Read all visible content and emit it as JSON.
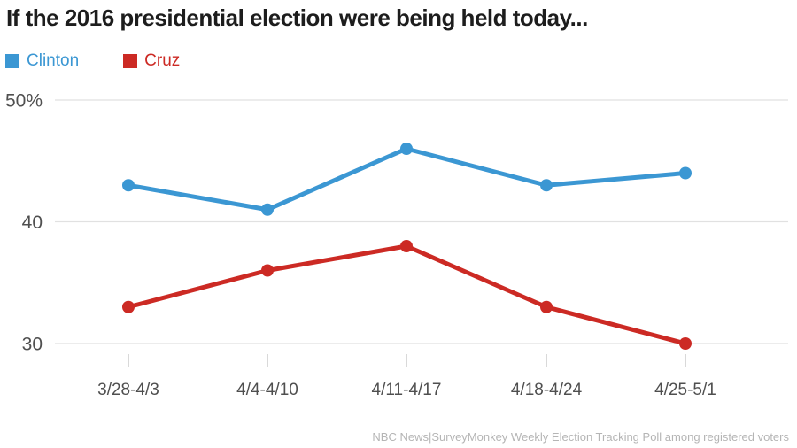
{
  "title": "If the 2016 presidential election were being held today...",
  "legend": {
    "items": [
      {
        "label": "Clinton",
        "color": "#3b97d3"
      },
      {
        "label": "Cruz",
        "color": "#cc2a24"
      }
    ]
  },
  "footer": {
    "source_note": "NBC News|SurveyMonkey Weekly Election Tracking Poll among registered voters"
  },
  "colors": {
    "clinton": "#3b97d3",
    "cruz": "#cc2a24",
    "gridline": "#e1e1e1",
    "tick": "#cccccc",
    "axis_label": "#4f4f4f",
    "title_text": "#1d1d1d",
    "footer_text": "#b5b5b5"
  },
  "chart_data": {
    "type": "line",
    "title": "If the 2016 presidential election were being held today...",
    "categories": [
      "3/28-4/3",
      "4/4-4/10",
      "4/11-4/17",
      "4/18-4/24",
      "4/25-5/1"
    ],
    "series": [
      {
        "name": "Clinton",
        "color": "#3b97d3",
        "values": [
          43,
          41,
          46,
          43,
          44
        ]
      },
      {
        "name": "Cruz",
        "color": "#cc2a24",
        "values": [
          33,
          36,
          38,
          33,
          30
        ]
      }
    ],
    "xlabel": "",
    "ylabel": "",
    "unit": "%",
    "ylim": [
      30,
      50
    ],
    "yticks": [
      {
        "value": 30,
        "label": "30"
      },
      {
        "value": 40,
        "label": "40"
      },
      {
        "value": 50,
        "label": "50%"
      }
    ],
    "grid": "horizontal",
    "legend_position": "top-left",
    "source": "NBC News|SurveyMonkey Weekly Election Tracking Poll among registered voters"
  }
}
